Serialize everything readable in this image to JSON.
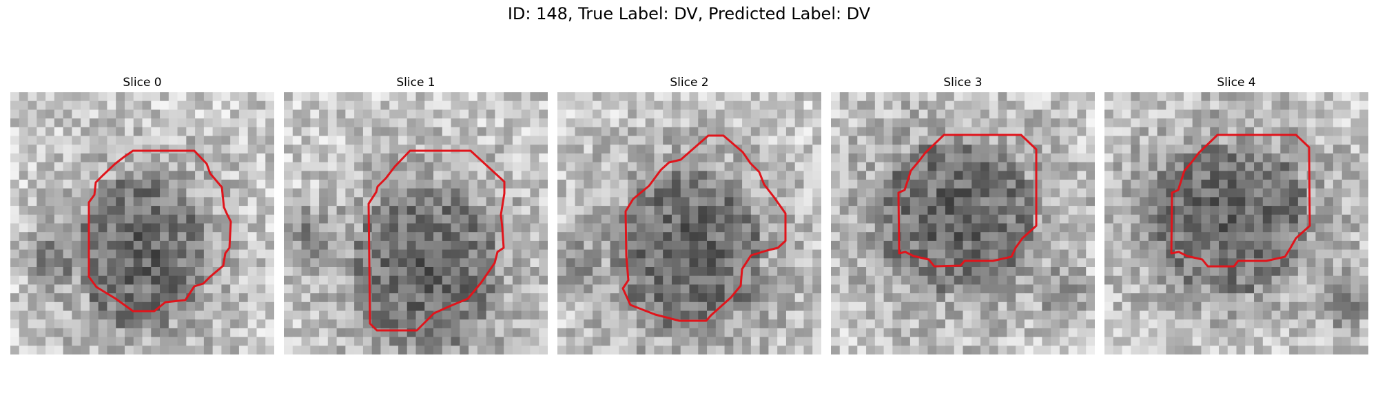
{
  "figure": {
    "title": "ID: 148, True Label: DV, Predicted Label: DV"
  },
  "colors": {
    "contour": "#e0141b",
    "background": "#ffffff"
  },
  "panels": [
    {
      "title": "Slice 0"
    },
    {
      "title": "Slice 1"
    },
    {
      "title": "Slice 2"
    },
    {
      "title": "Slice 3"
    },
    {
      "title": "Slice 4"
    }
  ]
}
